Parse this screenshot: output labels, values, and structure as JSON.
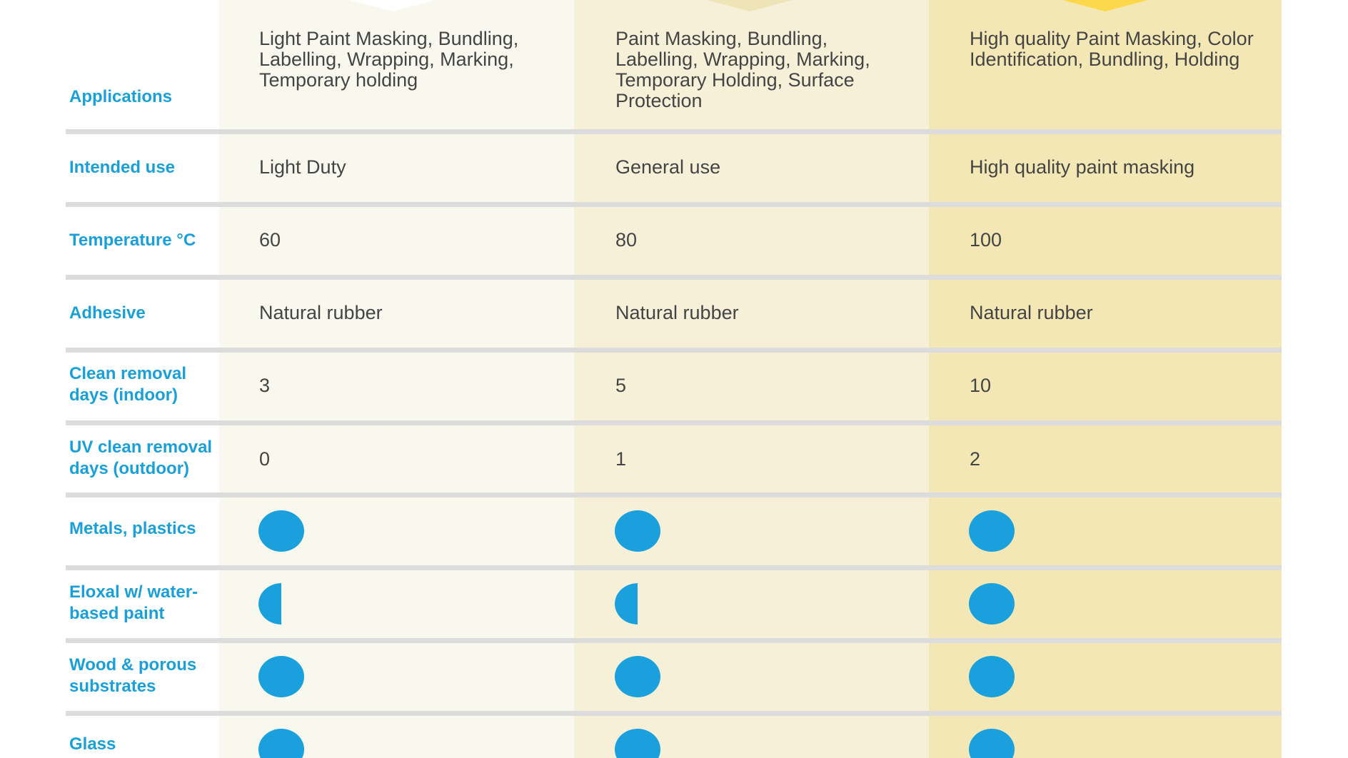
{
  "rows": [
    {
      "label": "Applications",
      "values": [
        "Light Paint Masking, Bundling, Labelling, Wrapping, Marking, Temporary holding",
        "Paint Masking, Bundling, Labelling, Wrapping, Marking, Temporary Holding, Surface Protection",
        "High quality Paint Masking, Color Identification, Bundling, Holding"
      ]
    },
    {
      "label": "Intended use",
      "values": [
        "Light Duty",
        "General use",
        "High quality paint masking"
      ]
    },
    {
      "label": "Temperature °C",
      "values": [
        "60",
        "80",
        "100"
      ]
    },
    {
      "label": "Adhesive",
      "values": [
        "Natural rubber",
        "Natural rubber",
        "Natural rubber"
      ]
    },
    {
      "label": "Clean removal days (indoor)",
      "values": [
        "3",
        "5",
        "10"
      ]
    },
    {
      "label": "UV clean removal days (outdoor)",
      "values": [
        "0",
        "1",
        "2"
      ]
    },
    {
      "label": "Metals, plastics",
      "ratings": [
        "full",
        "full",
        "full"
      ]
    },
    {
      "label": "Eloxal w/ water-based paint",
      "ratings": [
        "half",
        "half",
        "full"
      ]
    },
    {
      "label": "Wood & porous substrates",
      "ratings": [
        "full",
        "full",
        "full"
      ]
    },
    {
      "label": "Glass",
      "ratings": [
        "full",
        "full",
        "full"
      ]
    }
  ],
  "colors": {
    "label": "#1aa0d8",
    "rating_dot": "#1aa0dc",
    "col1_bg": "#f9f8ef",
    "col2_bg": "#f6f0d9",
    "col3_bg": "#f3e8b5",
    "divider": "#dcdcdc"
  },
  "icons": {
    "full": "full-circle-rating-icon",
    "half": "half-circle-rating-icon"
  }
}
